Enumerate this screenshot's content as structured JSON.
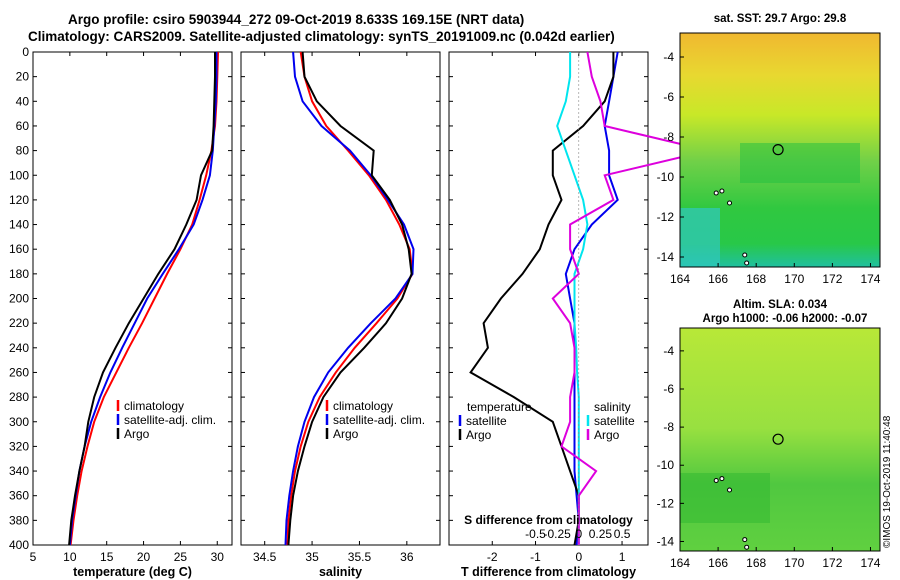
{
  "header": {
    "line1": "Argo profile: csiro 5903944_272 09-Oct-2019 8.633S 169.15E (NRT data)",
    "line2": "Climatology: CARS2009. Satellite-adjusted climatology: synTS_20191009.nc (0.042d earlier)"
  },
  "colors": {
    "climatology": "#ff0000",
    "satellite": "#0000ee",
    "argo": "#000000",
    "salinity_satellite": "#00e5ee",
    "salinity_argo": "#dd00dd"
  },
  "watermark": "©IMOS 19-Oct-2019 11:40:48",
  "chart_data": [
    {
      "type": "line",
      "name": "temperature-profile",
      "xlabel": "temperature (deg C)",
      "ylabel": "",
      "xlim": [
        5,
        32
      ],
      "ylim": [
        400,
        0
      ],
      "xticks": [
        5,
        10,
        15,
        20,
        25,
        30
      ],
      "yticks": [
        0,
        20,
        40,
        60,
        80,
        100,
        120,
        140,
        160,
        180,
        200,
        220,
        240,
        260,
        280,
        300,
        320,
        340,
        360,
        380,
        400
      ],
      "legend_position": "bottom-right",
      "y": [
        0,
        20,
        40,
        60,
        80,
        100,
        120,
        140,
        160,
        180,
        200,
        220,
        240,
        260,
        280,
        300,
        320,
        340,
        360,
        380,
        400
      ],
      "series": [
        {
          "name": "climatology",
          "color": "#ff0000",
          "values": [
            30.1,
            30.0,
            29.9,
            29.7,
            29.2,
            28.5,
            27.6,
            26.6,
            25.0,
            23.2,
            21.5,
            19.8,
            18.0,
            16.3,
            14.6,
            13.3,
            12.4,
            11.6,
            11.0,
            10.5,
            10.1
          ]
        },
        {
          "name": "satellite-adj. clim.",
          "color": "#0000ee",
          "values": [
            29.9,
            29.9,
            29.8,
            29.6,
            29.4,
            29.0,
            28.0,
            26.8,
            24.8,
            22.6,
            20.5,
            18.8,
            17.1,
            15.5,
            14.1,
            12.9,
            12.0,
            11.3,
            10.8,
            10.3,
            10.0
          ]
        },
        {
          "name": "Argo",
          "color": "#000000",
          "values": [
            29.7,
            29.7,
            29.6,
            29.5,
            29.3,
            27.8,
            27.2,
            25.8,
            24.2,
            22.0,
            20.0,
            18.0,
            16.2,
            14.5,
            13.3,
            12.5,
            12.0,
            11.3,
            10.7,
            10.2,
            9.9
          ]
        }
      ]
    },
    {
      "type": "line",
      "name": "salinity-profile",
      "xlabel": "salinity",
      "ylabel": "",
      "xlim": [
        34.25,
        36.35
      ],
      "ylim": [
        400,
        0
      ],
      "xticks": [
        34.5,
        35,
        35.5,
        36
      ],
      "xticklabels": [
        "34.5",
        "35",
        "35.5",
        "36"
      ],
      "legend_position": "bottom-right",
      "y": [
        0,
        20,
        40,
        60,
        80,
        100,
        120,
        140,
        160,
        180,
        200,
        220,
        240,
        260,
        280,
        300,
        320,
        340,
        360,
        380,
        400
      ],
      "series": [
        {
          "name": "climatology",
          "color": "#ff0000",
          "values": [
            34.88,
            34.92,
            35.0,
            35.15,
            35.38,
            35.6,
            35.78,
            35.92,
            36.03,
            36.06,
            35.9,
            35.68,
            35.45,
            35.25,
            35.08,
            34.96,
            34.88,
            34.82,
            34.78,
            34.75,
            34.74
          ]
        },
        {
          "name": "satellite-adj. clim.",
          "color": "#0000ee",
          "values": [
            34.8,
            34.82,
            34.9,
            35.1,
            35.4,
            35.62,
            35.8,
            35.97,
            36.07,
            36.06,
            35.88,
            35.62,
            35.38,
            35.17,
            35.02,
            34.92,
            34.85,
            34.8,
            34.76,
            34.73,
            34.72
          ]
        },
        {
          "name": "Argo",
          "color": "#000000",
          "values": [
            34.9,
            34.92,
            35.05,
            35.3,
            35.65,
            35.63,
            35.82,
            35.95,
            36.02,
            36.05,
            35.95,
            35.78,
            35.55,
            35.3,
            35.12,
            35.0,
            34.92,
            34.85,
            34.8,
            34.77,
            34.75
          ]
        }
      ]
    },
    {
      "type": "line",
      "name": "difference-profile",
      "xlabel": "T difference from climatology",
      "xlabel_top": "S difference from climatology",
      "xlim": [
        -3.0,
        1.6
      ],
      "ylim": [
        400,
        0
      ],
      "xticks": [
        -2,
        -1,
        0,
        1
      ],
      "xticklabels": [
        "-2",
        "-1",
        "0",
        "1"
      ],
      "sticks_label": [
        "-0.5",
        "-0.25",
        "0",
        "0.25",
        "0.5"
      ],
      "legend_position": "bottom",
      "legend_groups": [
        "temperature",
        "salinity"
      ],
      "y": [
        0,
        20,
        40,
        60,
        80,
        100,
        120,
        140,
        160,
        180,
        200,
        220,
        240,
        260,
        280,
        300,
        320,
        340,
        360,
        380,
        400
      ],
      "series": [
        {
          "name": "satellite",
          "group": "temperature",
          "color": "#0000ee",
          "values": [
            0.9,
            0.8,
            0.7,
            0.6,
            0.7,
            0.7,
            0.9,
            0.3,
            -0.1,
            -0.3,
            -0.2,
            -0.1,
            -0.1,
            -0.1,
            -0.1,
            -0.1,
            -0.1,
            -0.1,
            -0.05,
            0.0,
            -0.05
          ]
        },
        {
          "name": "Argo",
          "group": "temperature",
          "color": "#000000",
          "values": [
            0.8,
            0.8,
            0.6,
            0.1,
            -0.6,
            -0.6,
            -0.4,
            -0.7,
            -0.9,
            -1.3,
            -1.8,
            -2.2,
            -2.1,
            -2.5,
            -1.5,
            -0.6,
            -0.4,
            -0.2,
            0.0,
            0.0,
            -0.1
          ]
        },
        {
          "name": "satellite",
          "group": "salinity",
          "color": "#00e5ee",
          "values": [
            -0.1,
            -0.1,
            -0.15,
            -0.25,
            -0.15,
            -0.05,
            0.05,
            0.1,
            0.05,
            -0.05,
            -0.05,
            -0.05,
            -0.03,
            -0.02,
            0.0,
            0.0,
            0.0,
            0.0,
            0.0,
            0.0,
            0.0
          ]
        },
        {
          "name": "Argo",
          "group": "salinity",
          "color": "#dd00dd",
          "values": [
            0.1,
            0.15,
            0.25,
            0.3,
            1.5,
            0.3,
            0.4,
            -0.1,
            -0.1,
            0.0,
            -0.3,
            -0.1,
            -0.05,
            -0.05,
            -0.1,
            -0.1,
            -0.2,
            0.2,
            0.0,
            0.0,
            0.0
          ]
        }
      ]
    },
    {
      "type": "heatmap",
      "name": "sst-map",
      "title": "sat. SST: 29.7 Argo: 29.8",
      "xlim": [
        164,
        174.5
      ],
      "ylim": [
        -14.5,
        -2.8
      ],
      "xticks": [
        164,
        166,
        168,
        170,
        172,
        174
      ],
      "yticks": [
        -4,
        -6,
        -8,
        -10,
        -12,
        -14
      ],
      "marker": {
        "lon": 169.15,
        "lat": -8.633
      }
    },
    {
      "type": "heatmap",
      "name": "sla-map",
      "title": "Altim. SLA: 0.034",
      "subtitle": "Argo h1000: -0.06 h2000: -0.07",
      "xlim": [
        164,
        174.5
      ],
      "ylim": [
        -14.5,
        -2.8
      ],
      "xticks": [
        164,
        166,
        168,
        170,
        172,
        174
      ],
      "yticks": [
        -4,
        -6,
        -8,
        -10,
        -12,
        -14
      ],
      "marker": {
        "lon": 169.15,
        "lat": -8.633
      }
    }
  ]
}
